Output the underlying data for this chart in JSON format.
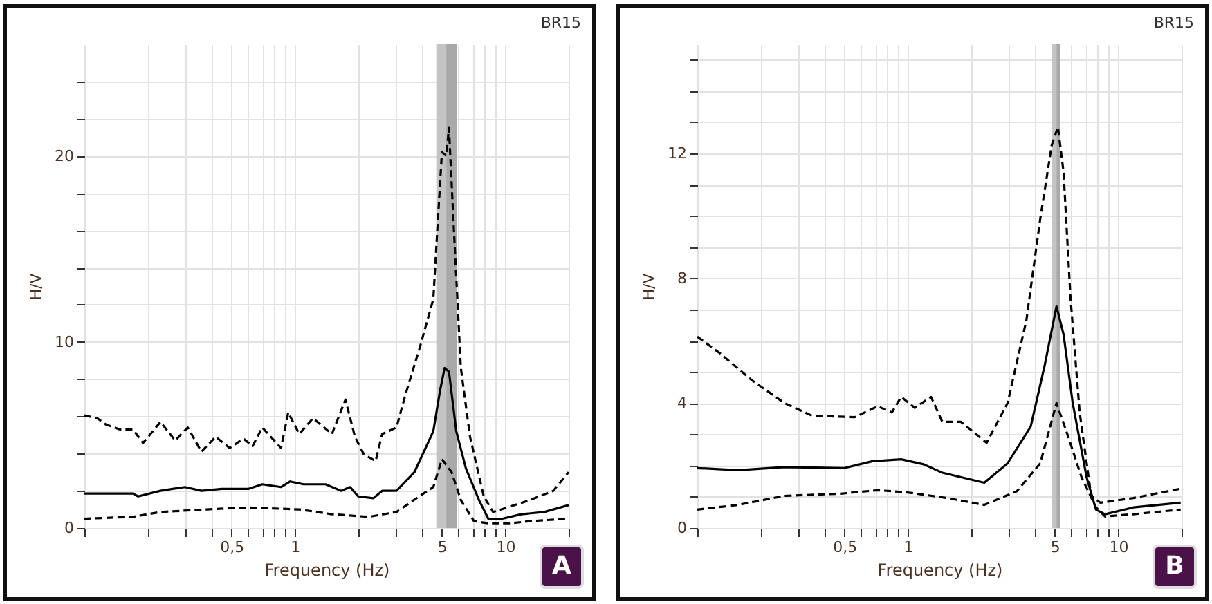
{
  "chart_data": [
    {
      "type": "line",
      "xlabel": "Frequency (Hz)",
      "ylabel": "H/V",
      "annotations": [
        "BR15",
        "A"
      ],
      "log": "x",
      "grid": true,
      "xlim": [
        0.1,
        20
      ],
      "ylim": [
        0,
        26
      ],
      "xticks": [
        {
          "value": 0.1,
          "label": null
        },
        {
          "value": 0.2,
          "label": null
        },
        {
          "value": 0.3,
          "label": null
        },
        {
          "value": 0.4,
          "label": null
        },
        {
          "value": 0.5,
          "label": "0,5"
        },
        {
          "value": 0.6,
          "label": null
        },
        {
          "value": 0.7,
          "label": null
        },
        {
          "value": 0.8,
          "label": null
        },
        {
          "value": 0.9,
          "label": null
        },
        1,
        {
          "value": 2,
          "label": null
        },
        {
          "value": 3,
          "label": null
        },
        {
          "value": 4,
          "label": null
        },
        5,
        {
          "value": 6,
          "label": null
        },
        {
          "value": 7,
          "label": null
        },
        {
          "value": 8,
          "label": null
        },
        {
          "value": 9,
          "label": null
        },
        10,
        {
          "value": 20,
          "label": null
        }
      ],
      "yticks": [
        0,
        {
          "value": 2,
          "label": null
        },
        {
          "value": 4,
          "label": null
        },
        {
          "value": 6,
          "label": null
        },
        {
          "value": 8,
          "label": null
        },
        10,
        {
          "value": 12,
          "label": null
        },
        {
          "value": 14,
          "label": null
        },
        {
          "value": 16,
          "label": null
        },
        {
          "value": 18,
          "label": null
        },
        20,
        {
          "value": 22,
          "label": null
        },
        {
          "value": 24,
          "label": null
        }
      ],
      "bands": [
        {
          "axis": "x",
          "from": 4.7,
          "to": 5.9,
          "color": "#c4c4c4"
        },
        {
          "axis": "x",
          "from": 5.25,
          "to": 5.9,
          "color": "#a9a9a9"
        }
      ],
      "series": [
        {
          "color": "#000000",
          "line_style": "dashed",
          "x": [
            0.1,
            0.115,
            0.127,
            0.147,
            0.17,
            0.19,
            0.23,
            0.27,
            0.31,
            0.36,
            0.42,
            0.49,
            0.57,
            0.63,
            0.7,
            0.86,
            0.93,
            1.05,
            1.22,
            1.5,
            1.74,
            1.93,
            2.13,
            2.42,
            2.6,
            3.04,
            3.36,
            3.9,
            4.55,
            4.78,
            5.0,
            5.24,
            5.4,
            5.7,
            6.15,
            6.8,
            7.9,
            8.75,
            10.2,
            13.1,
            16.9,
            20
          ],
          "values": [
            6.05,
            5.9,
            5.55,
            5.3,
            5.3,
            4.57,
            5.7,
            4.7,
            5.4,
            4.1,
            4.9,
            4.3,
            4.8,
            4.4,
            5.4,
            4.3,
            6.2,
            5.05,
            5.9,
            5.05,
            6.9,
            4.9,
            3.95,
            3.6,
            5.05,
            5.4,
            7.2,
            9.6,
            12.3,
            16.5,
            20.2,
            20,
            21.5,
            16,
            8.6,
            4.9,
            1.7,
            0.86,
            1.1,
            1.5,
            2.0,
            3.0
          ]
        },
        {
          "color": "#000000",
          "line_style": "solid",
          "x": [
            0.1,
            0.17,
            0.18,
            0.23,
            0.3,
            0.36,
            0.45,
            0.6,
            0.7,
            0.86,
            0.95,
            1.1,
            1.4,
            1.66,
            1.83,
            2.0,
            2.36,
            2.6,
            3.04,
            3.7,
            4.55,
            4.9,
            5.15,
            5.4,
            5.85,
            6.5,
            7.5,
            8.3,
            9.7,
            11.9,
            15.3,
            20
          ],
          "values": [
            1.85,
            1.85,
            1.7,
            2.0,
            2.2,
            2.0,
            2.1,
            2.1,
            2.35,
            2.2,
            2.5,
            2.35,
            2.35,
            2.0,
            2.2,
            1.7,
            1.6,
            2.0,
            2.0,
            3.0,
            5.2,
            7.4,
            8.6,
            8.4,
            5.2,
            3.2,
            1.5,
            0.5,
            0.5,
            0.74,
            0.86,
            1.23
          ]
        },
        {
          "color": "#000000",
          "line_style": "dashed",
          "x": [
            0.1,
            0.17,
            0.23,
            0.38,
            0.6,
            1.05,
            1.5,
            2.24,
            3.04,
            3.9,
            4.55,
            5.0,
            5.56,
            6.15,
            7.1,
            8.3,
            10.5,
            13.1,
            20
          ],
          "values": [
            0.5,
            0.6,
            0.86,
            1.0,
            1.1,
            1.0,
            0.74,
            0.6,
            0.86,
            1.7,
            2.2,
            3.7,
            3.0,
            1.5,
            0.37,
            0.25,
            0.25,
            0.37,
            0.5
          ]
        }
      ]
    },
    {
      "type": "line",
      "xlabel": "Frequency (Hz)",
      "ylabel": "H/V",
      "annotations": [
        "BR15",
        "B"
      ],
      "log": "x",
      "grid": true,
      "xlim": [
        0.1,
        20
      ],
      "ylim": [
        0,
        15.5
      ],
      "xticks": [
        {
          "value": 0.1,
          "label": null
        },
        {
          "value": 0.2,
          "label": null
        },
        {
          "value": 0.3,
          "label": null
        },
        {
          "value": 0.4,
          "label": null
        },
        {
          "value": 0.5,
          "label": "0,5"
        },
        {
          "value": 0.6,
          "label": null
        },
        {
          "value": 0.7,
          "label": null
        },
        {
          "value": 0.8,
          "label": null
        },
        {
          "value": 0.9,
          "label": null
        },
        1,
        {
          "value": 2,
          "label": null
        },
        {
          "value": 3,
          "label": null
        },
        {
          "value": 4,
          "label": null
        },
        5,
        {
          "value": 6,
          "label": null
        },
        {
          "value": 7,
          "label": null
        },
        {
          "value": 8,
          "label": null
        },
        {
          "value": 9,
          "label": null
        },
        10,
        {
          "value": 20,
          "label": null
        }
      ],
      "yticks": [
        0,
        {
          "value": 1,
          "label": null
        },
        {
          "value": 2,
          "label": null
        },
        {
          "value": 3,
          "label": null
        },
        4,
        {
          "value": 5,
          "label": null
        },
        {
          "value": 6,
          "label": null
        },
        {
          "value": 7,
          "label": null
        },
        8,
        {
          "value": 9,
          "label": null
        },
        {
          "value": 10,
          "label": null
        },
        {
          "value": 11,
          "label": null
        },
        12,
        {
          "value": 13,
          "label": null
        },
        {
          "value": 14,
          "label": null
        },
        {
          "value": 15,
          "label": null
        }
      ],
      "bands": [
        {
          "axis": "x",
          "from": 4.83,
          "to": 5.3,
          "color": "#c4c4c4"
        },
        {
          "axis": "x",
          "from": 5.1,
          "to": 5.3,
          "color": "#a9a9a9"
        }
      ],
      "series": [
        {
          "color": "#000000",
          "line_style": "dashed",
          "x": [
            0.1,
            0.128,
            0.182,
            0.26,
            0.35,
            0.56,
            0.72,
            0.84,
            0.93,
            1.08,
            1.29,
            1.46,
            1.79,
            2.37,
            2.98,
            3.66,
            4.26,
            4.83,
            5.17,
            5.5,
            5.93,
            6.56,
            7.44,
            8.24,
            11.8,
            19.8
          ],
          "values": [
            6.13,
            5.6,
            4.73,
            4.0,
            3.6,
            3.55,
            3.9,
            3.7,
            4.2,
            3.85,
            4.2,
            3.4,
            3.4,
            2.73,
            4.0,
            6.65,
            9.9,
            12.26,
            12.85,
            11.4,
            7.4,
            3.7,
            1.03,
            0.81,
            0.96,
            1.26
          ]
        },
        {
          "color": "#000000",
          "line_style": "solid",
          "x": [
            0.1,
            0.156,
            0.26,
            0.5,
            0.68,
            0.93,
            1.19,
            1.46,
            2.31,
            2.98,
            3.84,
            4.47,
            5.09,
            5.5,
            6.08,
            7.08,
            7.84,
            8.66,
            11.8,
            19.8
          ],
          "values": [
            1.92,
            1.85,
            1.95,
            1.92,
            2.14,
            2.2,
            2.04,
            1.77,
            1.45,
            2.07,
            3.25,
            5.2,
            7.1,
            6.2,
            4.0,
            1.62,
            0.59,
            0.44,
            0.66,
            0.81
          ]
        },
        {
          "color": "#000000",
          "line_style": "dashed",
          "x": [
            0.1,
            0.156,
            0.26,
            0.48,
            0.72,
            0.97,
            1.54,
            2.31,
            3.3,
            4.26,
            5.09,
            5.77,
            6.7,
            7.84,
            8.66,
            11.8,
            19.8
          ],
          "values": [
            0.59,
            0.74,
            1.03,
            1.1,
            1.21,
            1.15,
            0.96,
            0.74,
            1.18,
            2.07,
            4.0,
            2.95,
            1.62,
            0.66,
            0.37,
            0.44,
            0.59
          ]
        }
      ]
    }
  ]
}
